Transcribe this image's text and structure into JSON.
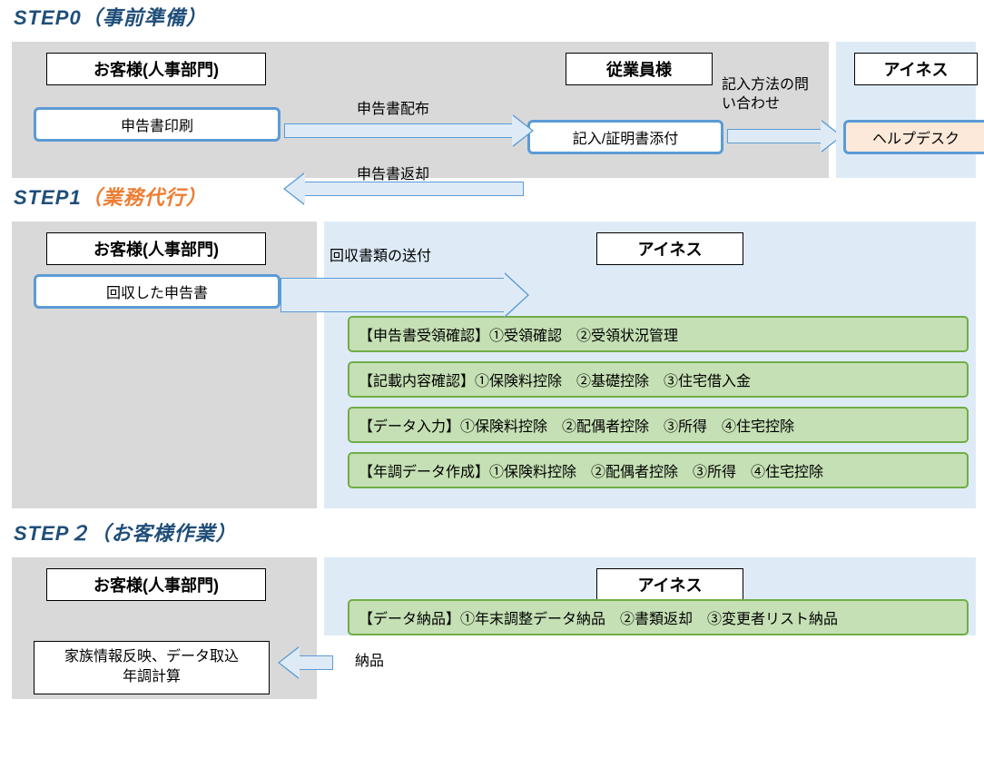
{
  "colors": {
    "title_blue": "#1f4e79",
    "orange": "#ed7d31",
    "panel_gray": "#d9d9d9",
    "panel_blue": "#deebf7",
    "box_border_blue": "#5b9bd5",
    "task_bg": "#c5e0b4",
    "task_border": "#70ad47",
    "pink_bg": "#fde9d9"
  },
  "step0": {
    "title_main": "STEP0",
    "title_sub": "（事前準備）",
    "header_customer": "お客様(人事部門)",
    "header_employee": "従業員様",
    "header_ines": "アイネス",
    "action_print": "申告書印刷",
    "action_fill": "記入/証明書添付",
    "action_helpdesk": "ヘルプデスク",
    "label_distribute": "申告書配布",
    "label_return": "申告書返却",
    "label_inquiry": "記入方法の問い合わせ"
  },
  "step1": {
    "title_main": "STEP1",
    "title_sub": "（業務代行）",
    "header_customer": "お客様(人事部門)",
    "header_ines": "アイネス",
    "action_collected": "回収した申告書",
    "label_send": "回収書類の送付",
    "task1": "【申告書受領確認】①受領確認　②受領状況管理",
    "task2": "【記載内容確認】①保険料控除　②基礎控除　③住宅借入金",
    "task3": "【データ入力】①保険料控除　②配偶者控除　③所得　④住宅控除",
    "task4": "【年調データ作成】①保険料控除　②配偶者控除　③所得　④住宅控除"
  },
  "step2": {
    "title_main": "STEP２",
    "title_sub": "（お客様作業）",
    "header_customer": "お客様(人事部門)",
    "header_ines": "アイネス",
    "task5": "【データ納品】①年末調整データ納品　②書類返却　③変更者リスト納品",
    "action_family": "家族情報反映、データ取込\n年調計算",
    "label_deliver": "納品"
  }
}
